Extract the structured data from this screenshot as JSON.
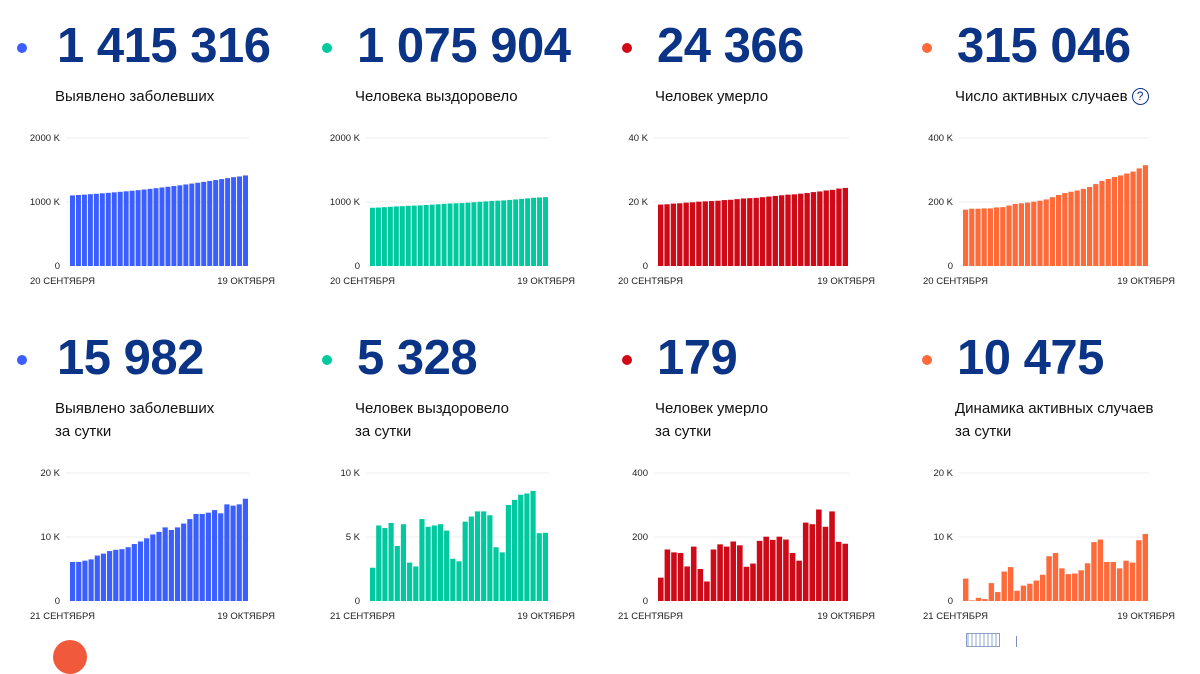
{
  "colors": {
    "blue": "#3a5eff",
    "green": "#00c9a0",
    "red": "#cf0a18",
    "orange": "#ff6a3a",
    "number": "#0b3386"
  },
  "cards": [
    {
      "value": "1 415 316",
      "label1": "Выявлено заболевших",
      "label2": "",
      "color": "#3a5eff",
      "help": false
    },
    {
      "value": "1 075 904",
      "label1": "Человека выздоровело",
      "label2": "",
      "color": "#00c9a0",
      "help": false
    },
    {
      "value": "24 366",
      "label1": "Человек умерло",
      "label2": "",
      "color": "#cf0a18",
      "help": false
    },
    {
      "value": "315 046",
      "label1": "Число активных случаев",
      "label2": "",
      "color": "#ff6a3a",
      "help": true,
      "help_icon": "question-circle-icon",
      "help_text": "?"
    },
    {
      "value": "15 982",
      "label1": "Выявлено заболевших",
      "label2": "за сутки",
      "color": "#3a5eff",
      "help": false
    },
    {
      "value": "5 328",
      "label1": "Человек выздоровело",
      "label2": "за сутки",
      "color": "#00c9a0",
      "help": false
    },
    {
      "value": "179",
      "label1": "Человек умерло",
      "label2": "за сутки",
      "color": "#cf0a18",
      "help": false
    },
    {
      "value": "10 475",
      "label1": "Динамика активных случаев",
      "label2": "за сутки",
      "color": "#ff6a3a",
      "help": false
    }
  ],
  "chart_data": [
    {
      "type": "bar",
      "color": "#3a5eff",
      "ylim": [
        0,
        2000
      ],
      "unit": "K",
      "yticks": [
        "0",
        "1000 K",
        "2000 K"
      ],
      "xlabels": [
        "20 СЕНТЯБРЯ",
        "19 ОКТЯБРЯ"
      ],
      "values": [
        1103,
        1109,
        1115,
        1122,
        1128,
        1136,
        1143,
        1151,
        1159,
        1167,
        1176,
        1185,
        1195,
        1205,
        1216,
        1227,
        1238,
        1249,
        1261,
        1274,
        1288,
        1301,
        1315,
        1329,
        1343,
        1358,
        1373,
        1388,
        1399,
        1415.3
      ]
    },
    {
      "type": "bar",
      "color": "#00c9a0",
      "ylim": [
        0,
        2000
      ],
      "unit": "K",
      "yticks": [
        "0",
        "1000 K",
        "2000 K"
      ],
      "xlabels": [
        "20 СЕНТЯБРЯ",
        "19 ОКТЯБРЯ"
      ],
      "values": [
        910,
        913,
        919,
        925,
        931,
        935,
        941,
        944,
        947,
        953,
        959,
        965,
        971,
        977,
        980,
        983,
        989,
        996,
        1003,
        1010,
        1017,
        1021,
        1025,
        1032,
        1040,
        1049,
        1057,
        1066,
        1071,
        1075.9
      ]
    },
    {
      "type": "bar",
      "color": "#cf0a18",
      "ylim": [
        0,
        40
      ],
      "unit": "K",
      "yticks": [
        "0",
        "20 K",
        "40 K"
      ],
      "xlabels": [
        "20 СЕНТЯБРЯ",
        "19 ОКТЯБРЯ"
      ],
      "values": [
        19.2,
        19.3,
        19.5,
        19.6,
        19.8,
        19.9,
        20.1,
        20.2,
        20.3,
        20.4,
        20.6,
        20.7,
        20.9,
        21.1,
        21.2,
        21.3,
        21.5,
        21.7,
        21.9,
        22.1,
        22.3,
        22.4,
        22.6,
        22.8,
        23.1,
        23.3,
        23.6,
        23.8,
        24.2,
        24.4
      ]
    },
    {
      "type": "bar",
      "color": "#ff6a3a",
      "ylim": [
        0,
        400
      ],
      "unit": "K",
      "yticks": [
        "0",
        "200 K",
        "400 K"
      ],
      "xlabels": [
        "20 СЕНТЯБРЯ",
        "19 ОКТЯБРЯ"
      ],
      "values": [
        176,
        179,
        179,
        180,
        180,
        183,
        184,
        189,
        194,
        196,
        198,
        201,
        204,
        208,
        215,
        222,
        228,
        232,
        236,
        241,
        247,
        256,
        266,
        272,
        278,
        283,
        289,
        295,
        305,
        315
      ]
    },
    {
      "type": "bar",
      "color": "#3a5eff",
      "ylim": [
        0,
        20
      ],
      "unit": "K",
      "yticks": [
        "0",
        "10 K",
        "20 K"
      ],
      "xlabels": [
        "21 СЕНТЯБРЯ",
        "19 ОКТЯБРЯ"
      ],
      "values": [
        6.1,
        6.1,
        6.3,
        6.5,
        7.1,
        7.4,
        7.8,
        8.0,
        8.1,
        8.4,
        8.9,
        9.3,
        9.8,
        10.4,
        10.8,
        11.5,
        11.1,
        11.5,
        12.1,
        12.8,
        13.6,
        13.6,
        13.8,
        14.2,
        13.7,
        15.1,
        14.9,
        15.1,
        15.98
      ]
    },
    {
      "type": "bar",
      "color": "#00c9a0",
      "ylim": [
        0,
        10
      ],
      "unit": "K",
      "yticks": [
        "0",
        "5 K",
        "10 K"
      ],
      "xlabels": [
        "21 СЕНТЯБРЯ",
        "19 ОКТЯБРЯ"
      ],
      "values": [
        2.6,
        5.9,
        5.7,
        6.1,
        4.3,
        6.0,
        3.0,
        2.7,
        6.4,
        5.8,
        5.9,
        6.0,
        5.5,
        3.3,
        3.1,
        6.2,
        6.6,
        7.0,
        7.0,
        6.7,
        4.2,
        3.8,
        7.5,
        7.9,
        8.3,
        8.4,
        8.6,
        5.3,
        5.33
      ]
    },
    {
      "type": "bar",
      "color": "#cf0a18",
      "ylim": [
        0,
        400
      ],
      "unit": "",
      "yticks": [
        "0",
        "200",
        "400"
      ],
      "xlabels": [
        "21 СЕНТЯБРЯ",
        "19 ОКТЯБРЯ"
      ],
      "values": [
        73,
        161,
        152,
        150,
        108,
        170,
        100,
        61,
        161,
        177,
        170,
        186,
        174,
        107,
        117,
        188,
        201,
        191,
        201,
        192,
        150,
        126,
        245,
        240,
        286,
        232,
        280,
        185,
        179
      ]
    },
    {
      "type": "bar",
      "color": "#ff6a3a",
      "ylim": [
        0,
        20
      ],
      "unit": "K",
      "yticks": [
        "0",
        "10 K",
        "20 K"
      ],
      "xlabels": [
        "21 СЕНТЯБРЯ",
        "19 ОКТЯБРЯ"
      ],
      "values": [
        3.5,
        0.1,
        0.5,
        0.3,
        2.8,
        1.4,
        4.6,
        5.3,
        1.6,
        2.4,
        2.7,
        3.2,
        4.1,
        7.0,
        7.5,
        5.1,
        4.2,
        4.3,
        4.8,
        5.9,
        9.2,
        9.6,
        6.1,
        6.1,
        5.1,
        6.3,
        6.0,
        9.5,
        10.475
      ]
    }
  ]
}
